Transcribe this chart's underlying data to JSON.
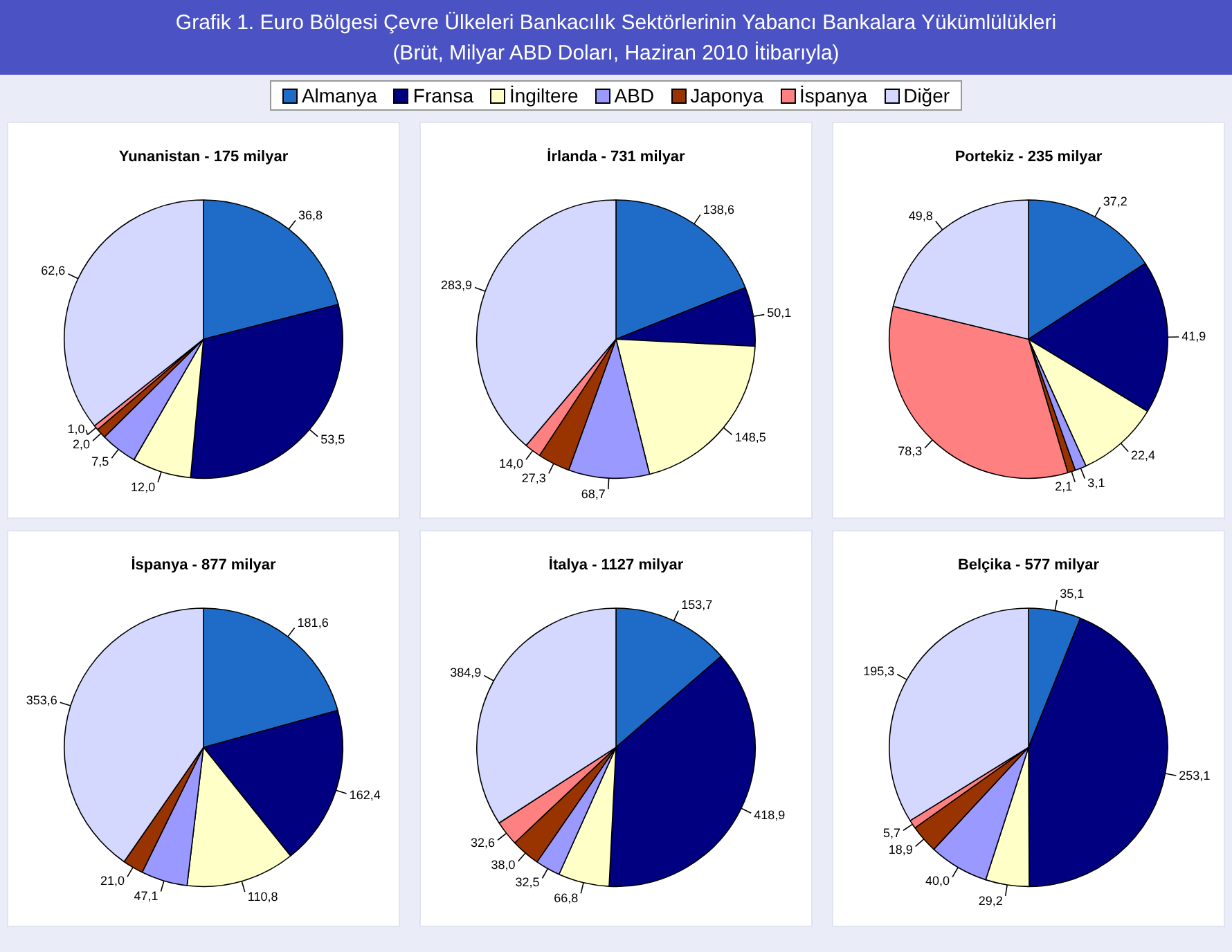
{
  "chart_data": [
    {
      "type": "other",
      "title": "Grafik 1. Euro Bölgesi Çevre Ülkeleri Bankacılık Sektörlerinin Yabancı Bankalara Yükümlülükleri",
      "subtitle": "(Brüt, Milyar ABD Doları, Haziran 2010 İtibarıyla)"
    },
    {
      "type": "pie",
      "title": "Yunanistan - 175 milyar",
      "legend": "top",
      "categories": [
        "Almanya",
        "Fransa",
        "İngiltere",
        "ABD",
        "Japonya",
        "İspanya",
        "Diğer"
      ],
      "colors": [
        "#1e6cc8",
        "#000080",
        "#ffffc8",
        "#9999ff",
        "#993300",
        "#ff8080",
        "#d4d8ff"
      ],
      "values": [
        36.8,
        53.5,
        12.0,
        7.5,
        2.0,
        1.0,
        62.6
      ],
      "value_labels": [
        "36,8",
        "53,5",
        "12,0",
        "7,5",
        "2,0",
        "1,0",
        "62,6"
      ]
    },
    {
      "type": "pie",
      "title": "İrlanda - 731 milyar",
      "categories": [
        null,
        null,
        null,
        null,
        null,
        null,
        null
      ],
      "colors": [
        "#1e6cc8",
        "#000080",
        "#ffffc8",
        "#9999ff",
        "#993300",
        "#ff8080",
        "#d4d8ff"
      ],
      "values": [
        138.6,
        50.1,
        148.5,
        68.7,
        27.3,
        14.0,
        283.9
      ],
      "value_labels": [
        "138,6",
        "50,1",
        "148,5",
        "68,7",
        "27,3",
        "14,0",
        "283,9"
      ]
    },
    {
      "type": "pie",
      "title": "Portekiz - 235 milyar",
      "categories": [
        null,
        null,
        null,
        null,
        null,
        null,
        null
      ],
      "colors": [
        "#1e6cc8",
        "#000080",
        "#ffffc8",
        "#9999ff",
        "#993300",
        "#ff8080",
        "#d4d8ff"
      ],
      "values": [
        37.2,
        41.9,
        22.4,
        3.1,
        2.1,
        78.3,
        49.8
      ],
      "value_labels": [
        "37,2",
        "41,9",
        "22,4",
        "3,1",
        "2,1",
        "78,3",
        "49,8"
      ]
    },
    {
      "type": "pie",
      "title": "İspanya - 877 milyar",
      "categories": [
        null,
        null,
        null,
        null,
        null,
        null,
        null
      ],
      "colors": [
        "#1e6cc8",
        "#000080",
        "#ffffc8",
        "#9999ff",
        "#993300",
        "#ff8080",
        "#d4d8ff"
      ],
      "values": [
        181.6,
        162.4,
        110.8,
        47.1,
        21.0,
        null,
        353.6
      ],
      "value_labels": [
        "181,6",
        "162,4",
        "110,8",
        "47,1",
        "21,0",
        null,
        "353,6"
      ]
    },
    {
      "type": "pie",
      "title": "İtalya - 1127 milyar",
      "categories": [
        null,
        null,
        null,
        null,
        null,
        null,
        null
      ],
      "colors": [
        "#1e6cc8",
        "#000080",
        "#ffffc8",
        "#9999ff",
        "#993300",
        "#ff8080",
        "#d4d8ff"
      ],
      "values": [
        153.7,
        418.9,
        66.8,
        32.5,
        38.0,
        32.6,
        384.9
      ],
      "value_labels": [
        "153,7",
        "418,9",
        "66,8",
        "32,5",
        "38,0",
        "32,6",
        "384,9"
      ]
    },
    {
      "type": "pie",
      "title": "Belçika - 577 milyar",
      "categories": [
        null,
        null,
        null,
        null,
        null,
        null,
        null
      ],
      "colors": [
        "#1e6cc8",
        "#000080",
        "#ffffc8",
        "#9999ff",
        "#993300",
        "#ff8080",
        "#d4d8ff"
      ],
      "values": [
        35.1,
        253.1,
        29.2,
        40.0,
        18.9,
        5.7,
        195.3
      ],
      "value_labels": [
        "35,1",
        "253,1",
        "29,2",
        "40,0",
        "18,9",
        "5,7",
        "195,3"
      ]
    }
  ]
}
